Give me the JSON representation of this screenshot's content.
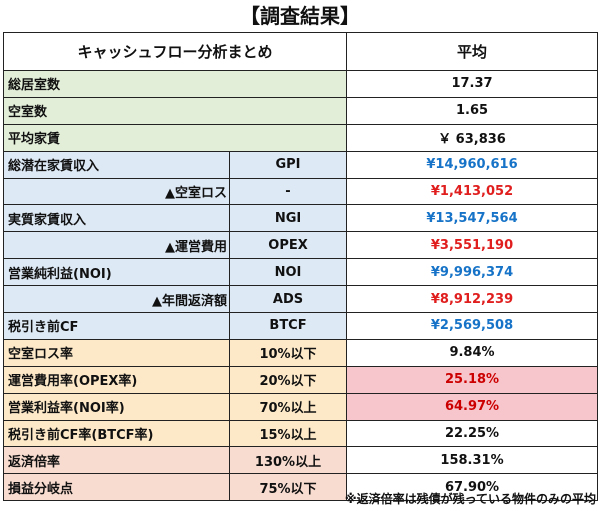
{
  "title": "【調査結果】",
  "header": {
    "label": "キャッシュフロー分析まとめ",
    "avg": "平均"
  },
  "rows": [
    {
      "label": "総居室数",
      "code": "",
      "value": "17.37"
    },
    {
      "label": "空室数",
      "code": "",
      "value": "1.65"
    },
    {
      "label": "平均家賃",
      "code": "",
      "value": "￥ 63,836"
    },
    {
      "label": "総潜在家賃収入",
      "code": "GPI",
      "value": "¥14,960,616"
    },
    {
      "label": "▲空室ロス",
      "code": "-",
      "value": "¥1,413,052"
    },
    {
      "label": "実質家賃収入",
      "code": "NGI",
      "value": "¥13,547,564"
    },
    {
      "label": "▲運営費用",
      "code": "OPEX",
      "value": "¥3,551,190"
    },
    {
      "label": "営業純利益(NOI)",
      "code": "NOI",
      "value": "¥9,996,374"
    },
    {
      "label": "▲年間返済額",
      "code": "ADS",
      "value": "¥8,912,239"
    },
    {
      "label": "税引き前CF",
      "code": "BTCF",
      "value": "¥2,569,508"
    },
    {
      "label": "空室ロス率",
      "code": "10%以下",
      "value": "9.84%"
    },
    {
      "label": "運営費用率(OPEX率)",
      "code": "20%以下",
      "value": "25.18%"
    },
    {
      "label": "営業利益率(NOI率)",
      "code": "70%以上",
      "value": "64.97%"
    },
    {
      "label": "税引き前CF率(BTCF率)",
      "code": "15%以上",
      "value": "22.25%"
    },
    {
      "label": "返済倍率",
      "code": "130%以上",
      "value": "158.31%"
    },
    {
      "label": "損益分岐点",
      "code": "75%以下",
      "value": "67.90%"
    }
  ],
  "colors": {
    "green": "#e2eed8",
    "blue_cell": "#dde9f5",
    "yellow": "#fde9c8",
    "peach": "#f8dcd0",
    "pink_highlight": "#f6c6cc",
    "value_blue": "#1673c7",
    "value_red": "#e01e1e"
  },
  "footnote": "※返済倍率は残債が残っている物件のみの平均"
}
